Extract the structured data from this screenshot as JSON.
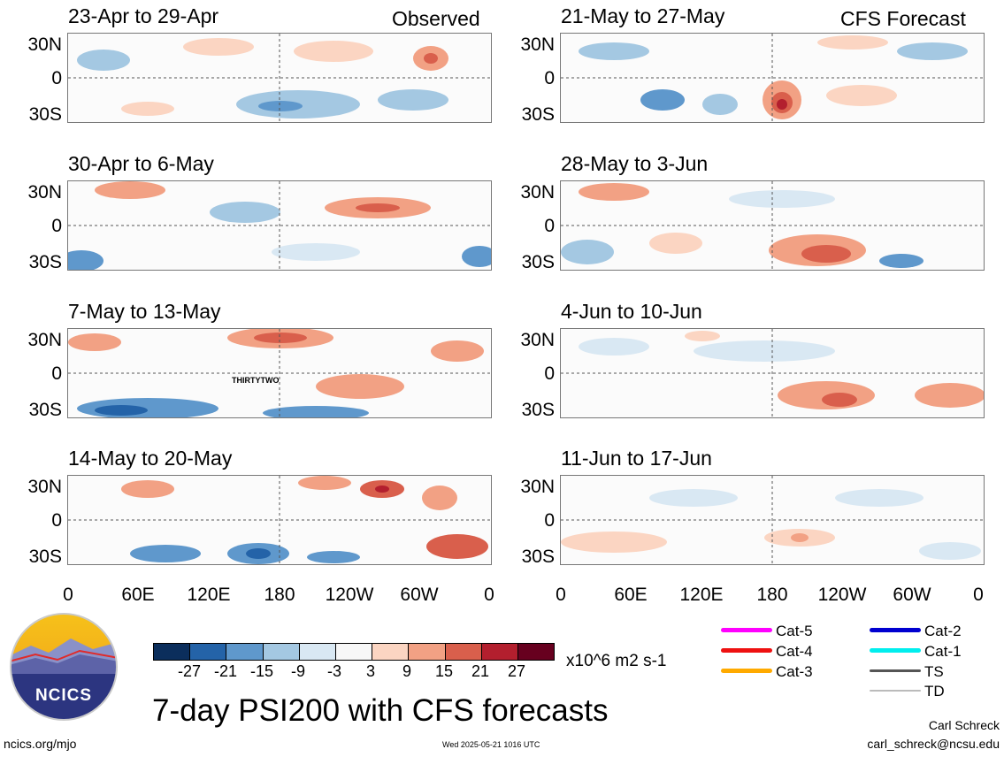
{
  "panels": {
    "obs": [
      {
        "title": "23-Apr to 29-Apr",
        "tag": "Observed"
      },
      {
        "title": "30-Apr to 6-May",
        "tag": ""
      },
      {
        "title": "7-May to 13-May",
        "tag": "",
        "storm": "THIRTYTWO"
      },
      {
        "title": "14-May to 20-May",
        "tag": ""
      }
    ],
    "fcst": [
      {
        "title": "21-May to 27-May",
        "tag": "CFS Forecast"
      },
      {
        "title": "28-May to 3-Jun",
        "tag": ""
      },
      {
        "title": "4-Jun to 10-Jun",
        "tag": ""
      },
      {
        "title": "11-Jun to 17-Jun",
        "tag": ""
      }
    ]
  },
  "lat_labels": [
    "30N",
    "0",
    "30S"
  ],
  "lon_labels": [
    "0",
    "60E",
    "120E",
    "180",
    "120W",
    "60W",
    "0"
  ],
  "colorbar": {
    "colors": [
      "#0b2e5c",
      "#2463a8",
      "#5f98cc",
      "#a4c8e2",
      "#d9e8f3",
      "#f7f7f7",
      "#fbd5c2",
      "#f2a184",
      "#d95f4c",
      "#b31f2e",
      "#67001f"
    ],
    "ticks": [
      "-27",
      "-21",
      "-15",
      "-9",
      "-3",
      "3",
      "9",
      "15",
      "21",
      "27"
    ],
    "units": "x10^6 m2 s-1"
  },
  "legend": [
    {
      "label": "Cat-5",
      "color": "#ff00ff"
    },
    {
      "label": "Cat-2",
      "color": "#0000d0"
    },
    {
      "label": "Cat-4",
      "color": "#ee1111"
    },
    {
      "label": "Cat-1",
      "color": "#00eeee"
    },
    {
      "label": "Cat-3",
      "color": "#ffaa00"
    },
    {
      "label": "TS",
      "color": "#555555"
    },
    {
      "label": "",
      "color": ""
    },
    {
      "label": "TD",
      "color": "#bbbbbb"
    }
  ],
  "logo_text": "NCICS",
  "main_title": "7-day PSI200 with CFS forecasts",
  "footer": {
    "url": "ncics.org/mjo",
    "timestamp": "Wed 2025-05-21 1016 UTC",
    "author": "Carl Schreck",
    "email": "carl_schreck@ncsu.edu"
  }
}
